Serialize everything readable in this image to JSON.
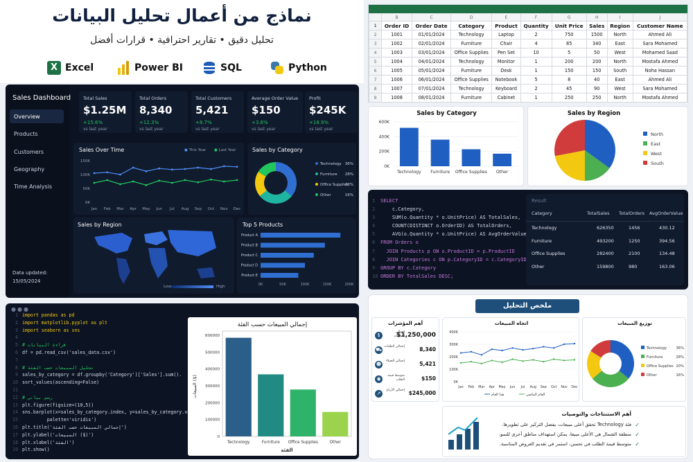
{
  "header": {
    "title": "نماذج من أعمال تحليل البيانات",
    "subtitle": "تحليل دقيق • تقارير احترافية • قرارات أفضل",
    "tools": [
      {
        "label": "Excel",
        "icon": "excel-icon",
        "color": "#1e7145"
      },
      {
        "label": "Power BI",
        "icon": "powerbi-icon",
        "color": "#f2c811"
      },
      {
        "label": "SQL",
        "icon": "database-icon",
        "color": "#1e5bb8"
      },
      {
        "label": "Python",
        "icon": "python-icon",
        "color": "#3b77a8"
      }
    ]
  },
  "dashboard": {
    "title": "Sales Dashboard",
    "nav": [
      "Overview",
      "Products",
      "Customers",
      "Geography",
      "Time Analysis"
    ],
    "updated_label": "Data updated:",
    "updated_value": "15/05/2024",
    "kpis": [
      {
        "label": "Total Sales",
        "value": "$1.25M",
        "change": "+15.6%",
        "note": "vs last year"
      },
      {
        "label": "Total Orders",
        "value": "8,340",
        "change": "+12.3%",
        "note": "vs last year"
      },
      {
        "label": "Total Customers",
        "value": "5,421",
        "change": "+8.7%",
        "note": "vs last year"
      },
      {
        "label": "Average Order Value",
        "value": "$150",
        "change": "+3.6%",
        "note": "vs last year"
      },
      {
        "label": "Profit",
        "value": "$245K",
        "change": "+18.9%",
        "note": "vs last year"
      }
    ],
    "time_title": "Sales Over Time",
    "legend_this": "This Year",
    "legend_last": "Last Year",
    "months": [
      "Jan",
      "Feb",
      "Mar",
      "Apr",
      "May",
      "Jun",
      "Jul",
      "Aug",
      "Sep",
      "Oct",
      "Nov",
      "Dec"
    ],
    "yticks": [
      "150K",
      "100K",
      "50K",
      "0K"
    ],
    "this_year": [
      105,
      108,
      100,
      125,
      112,
      122,
      118,
      120,
      125,
      120,
      130,
      128
    ],
    "last_year": [
      70,
      80,
      65,
      75,
      62,
      78,
      70,
      80,
      72,
      82,
      75,
      80
    ],
    "cat_title": "Sales by Category",
    "cat": [
      {
        "name": "Technology",
        "pct": "36%",
        "v": 36,
        "color": "#2f6fd1"
      },
      {
        "name": "Furniture",
        "pct": "28%",
        "v": 28,
        "color": "#1fb5a0"
      },
      {
        "name": "Office Supplies",
        "pct": "20%",
        "v": 20,
        "color": "#f2c811"
      },
      {
        "name": "Other",
        "pct": "16%",
        "v": 16,
        "color": "#22c55e"
      }
    ],
    "region_title": "Sales by Region",
    "low": "Low",
    "high": "High",
    "top_title": "Top 5 Products",
    "top": [
      {
        "name": "Product A",
        "v": 180
      },
      {
        "name": "Product B",
        "v": 145
      },
      {
        "name": "Product C",
        "v": 120
      },
      {
        "name": "Product D",
        "v": 100
      },
      {
        "name": "Product E",
        "v": 85
      }
    ],
    "top_ticks": [
      "0K",
      "50K",
      "100K",
      "150K",
      "200K"
    ]
  },
  "excel": {
    "letters": [
      "",
      "B",
      "C",
      "D",
      "E",
      "F",
      "G",
      "H",
      "I",
      "J"
    ],
    "headers": [
      "Order ID",
      "Order Date",
      "Category",
      "Product",
      "Quantity",
      "Unit Price",
      "Sales",
      "Region",
      "Customer Name"
    ],
    "rows": [
      [
        "1001",
        "01/01/2024",
        "Technology",
        "Laptop",
        "2",
        "750",
        "1500",
        "North",
        "Ahmed Ali"
      ],
      [
        "1002",
        "02/01/2024",
        "Furniture",
        "Chair",
        "4",
        "85",
        "340",
        "East",
        "Sara Mohamed"
      ],
      [
        "1003",
        "03/01/2024",
        "Office Supplies",
        "Pen Set",
        "10",
        "5",
        "50",
        "West",
        "Mohamed Saad"
      ],
      [
        "1004",
        "04/01/2024",
        "Technology",
        "Monitor",
        "1",
        "200",
        "200",
        "North",
        "Mostafa Ahmed"
      ],
      [
        "1005",
        "05/01/2024",
        "Furniture",
        "Desk",
        "1",
        "150",
        "150",
        "South",
        "Noha Hassan"
      ],
      [
        "1006",
        "06/01/2024",
        "Office Supplies",
        "Notebook",
        "5",
        "8",
        "40",
        "East",
        "Ahmed Ali"
      ],
      [
        "1007",
        "07/01/2024",
        "Technology",
        "Keyboard",
        "2",
        "45",
        "90",
        "West",
        "Sara Mohamed"
      ],
      [
        "1008",
        "08/01/2024",
        "Furniture",
        "Cabinet",
        "1",
        "250",
        "250",
        "North",
        "Mostafa Ahmed"
      ]
    ]
  },
  "chart_data": [
    {
      "type": "bar",
      "title": "Sales by Category",
      "categories": [
        "Technology",
        "Furniture",
        "Office Supplies",
        "Other"
      ],
      "values": [
        520,
        360,
        230,
        170
      ],
      "yticks": [
        "600K",
        "400K",
        "200K",
        "0K"
      ],
      "ylim": [
        0,
        600
      ]
    },
    {
      "type": "pie",
      "title": "Sales by Region",
      "labels": [
        "North",
        "East",
        "West",
        "South"
      ],
      "values": [
        35,
        15,
        22,
        28
      ],
      "colors": [
        "#1f5fc2",
        "#4caf50",
        "#f2c811",
        "#d03c3c"
      ]
    },
    {
      "type": "bar",
      "title": "إجمالي المبيعات حسب الفئة",
      "categories": [
        "Technology",
        "Furniture",
        "Office Supplies",
        "Other"
      ],
      "values": [
        585000,
        368000,
        278000,
        145000
      ],
      "colors": [
        "#2b5f8a",
        "#218a82",
        "#2fb36a",
        "#9bd44c"
      ],
      "yticks": [
        "600000",
        "500000",
        "400000",
        "300000",
        "200000",
        "100000",
        "0"
      ],
      "ylim": [
        0,
        600000
      ],
      "xlabel": "الفئة",
      "ylabel": "المبيعات ($)"
    }
  ],
  "sql": {
    "code": [
      "SELECT",
      "    c.Category,",
      "    SUM(o.Quantity * o.UnitPrice) AS TotalSales,",
      "    COUNT(DISTINCT o.OrderID) AS TotalOrders,",
      "    AVG(o.Quantity * o.UnitPrice) AS AvgOrderValue",
      "FROM Orders o",
      "  JOIN Products p ON o.ProductID = p.ProductID",
      "  JOIN Categories c ON p.CategoryID = c.CategoryID",
      "GROUP BY c.Category",
      "ORDER BY TotalSales DESC;"
    ],
    "result_label": "Result",
    "headers": [
      "Category",
      "TotalSales",
      "TotalOrders",
      "AvgOrderValue"
    ],
    "rows": [
      [
        "Technology",
        "626350",
        "1456",
        "430.12"
      ],
      [
        "Furniture",
        "493200",
        "1250",
        "394.56"
      ],
      [
        "Office Supplies",
        "282400",
        "2100",
        "134.48"
      ],
      [
        "Other",
        "159800",
        "980",
        "163.06"
      ]
    ]
  },
  "python": {
    "code": [
      "import pandas as pd",
      "import matplotlib.pyplot as plt",
      "import seaborn as sns",
      "",
      "# قراءة البيانات",
      "df = pd.read_csv('sales_data.csv')",
      "",
      "# تحليل المبيعات حسب الفئة",
      "sales_by_category = df.groupby('Category')['Sales'].sum().",
      "sort_values(ascending=False)",
      "",
      "# رسم بياني",
      "plt.figure(figsize=(10,5))",
      "sns.barplot(x=sales_by_category.index, y=sales_by_category.values,",
      "         palette='viridis')",
      "plt.title('إجمالي المبيعات حسب الفئة')",
      "plt.ylabel('المبيعات ($)')",
      "plt.xlabel('الفئة')",
      "plt.show()"
    ]
  },
  "summary": {
    "title": "ملخص التحليل",
    "kpi_title": "أهم المؤشرات",
    "kpis": [
      {
        "label": "إجمالي المبيعات",
        "value": "$1,250,000",
        "icon": "money-icon"
      },
      {
        "label": "إجمالي الطلبات",
        "value": "8,340",
        "icon": "cart-icon"
      },
      {
        "label": "إجمالي العملاء",
        "value": "5,421",
        "icon": "users-icon"
      },
      {
        "label": "متوسط قيمة الطلب",
        "value": "$150",
        "icon": "coin-icon"
      },
      {
        "label": "إجمالي الأرباح",
        "value": "$245,000",
        "icon": "chart-icon"
      }
    ],
    "trend_title": "اتجاه المبيعات",
    "trend_legend_this": "هذا العام",
    "trend_legend_last": "العام الماضي",
    "trend_yticks": [
      "400K",
      "300K",
      "200K",
      "100K",
      "0K"
    ],
    "trend_this": [
      230,
      240,
      215,
      260,
      250,
      270,
      255,
      265,
      280,
      270,
      300,
      305
    ],
    "trend_last": [
      150,
      160,
      145,
      170,
      155,
      180,
      165,
      175,
      160,
      180,
      170,
      175
    ],
    "dist_title": "توزيع المبيعات",
    "dist": [
      {
        "name": "Technology",
        "pct": "36%",
        "v": 36,
        "color": "#1f5fc2"
      },
      {
        "name": "Furniture",
        "pct": "28%",
        "v": 28,
        "color": "#4caf50"
      },
      {
        "name": "Office Supplies",
        "pct": "20%",
        "v": 20,
        "color": "#f2c811"
      },
      {
        "name": "Other",
        "pct": "16%",
        "v": 16,
        "color": "#d03c3c"
      }
    ],
    "insights_title": "أهم الاستنتاجات والتوصيات",
    "insights": [
      "فئة Technology تحقق أعلى مبيعات، يفضل التركيز على تطويرها.",
      "منطقة الشمال هي الأعلى مبيعا، يمكن استهداف مناطق أخرى للنمو.",
      "متوسط قيمة الطلب في تحسن، استمر في تقديم العروض المناسبة."
    ]
  }
}
